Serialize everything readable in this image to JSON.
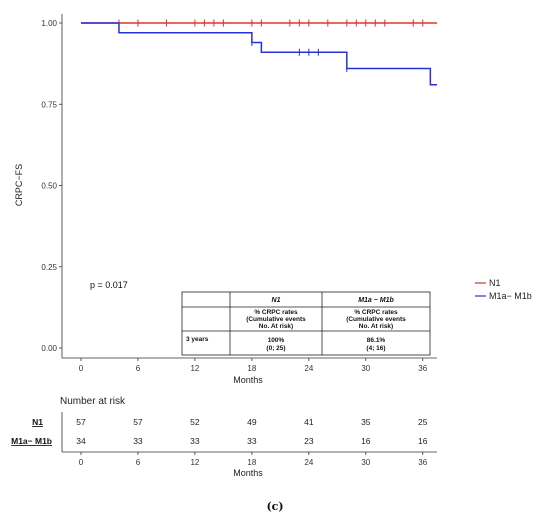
{
  "chart_data": {
    "type": "line",
    "ylabel": "CRPC−FS",
    "xlabel": "Months",
    "xlim": [
      -2,
      37.5
    ],
    "ylim": [
      0,
      1
    ],
    "x_ticks": [
      0,
      6,
      12,
      18,
      24,
      30,
      36
    ],
    "y_ticks": [
      0,
      0.25,
      0.5,
      0.75,
      1.0
    ],
    "y_tick_labels": [
      "0.00",
      "0.25",
      "0.50",
      "0.75",
      "1.00"
    ],
    "grid": false,
    "legend_placement": "right",
    "p_value": "p = 0.017",
    "series": [
      {
        "name": "N1",
        "color": "#e8302e",
        "steps": [
          [
            0,
            1.0
          ],
          [
            37.5,
            1.0
          ]
        ],
        "censor": [
          4,
          6,
          9,
          12,
          13,
          14,
          15,
          18,
          19,
          22,
          23,
          24,
          26,
          28,
          29,
          30,
          31,
          32,
          35,
          36
        ]
      },
      {
        "name": "M1a− M1b",
        "color": "#2830d8",
        "steps": [
          [
            0,
            1.0
          ],
          [
            4,
            0.97
          ],
          [
            18,
            0.94
          ],
          [
            19,
            0.91
          ],
          [
            28,
            0.86
          ],
          [
            36.8,
            0.81
          ],
          [
            37.5,
            0.81
          ]
        ],
        "censor": [
          18,
          23,
          24,
          25,
          28
        ]
      }
    ],
    "inset_table": {
      "headers": [
        "N1",
        "M1a − M1b"
      ],
      "subheader": [
        "% CRPC rates",
        "(Cumulative events",
        "No. At risk)"
      ],
      "rows": [
        {
          "label": "3 years",
          "n1_rate": "100%",
          "n1_detail": "(0; 25)",
          "m1_rate": "86.1%",
          "m1_detail": "(4; 16)"
        }
      ]
    },
    "risk_table": {
      "title": "Number at risk",
      "xlabel": "Months",
      "rows": [
        {
          "name": "N1",
          "values": [
            57,
            57,
            52,
            49,
            41,
            35,
            25
          ]
        },
        {
          "name": "M1a− M1b",
          "values": [
            34,
            33,
            33,
            33,
            23,
            16,
            16
          ]
        }
      ]
    }
  },
  "caption": "(c)"
}
